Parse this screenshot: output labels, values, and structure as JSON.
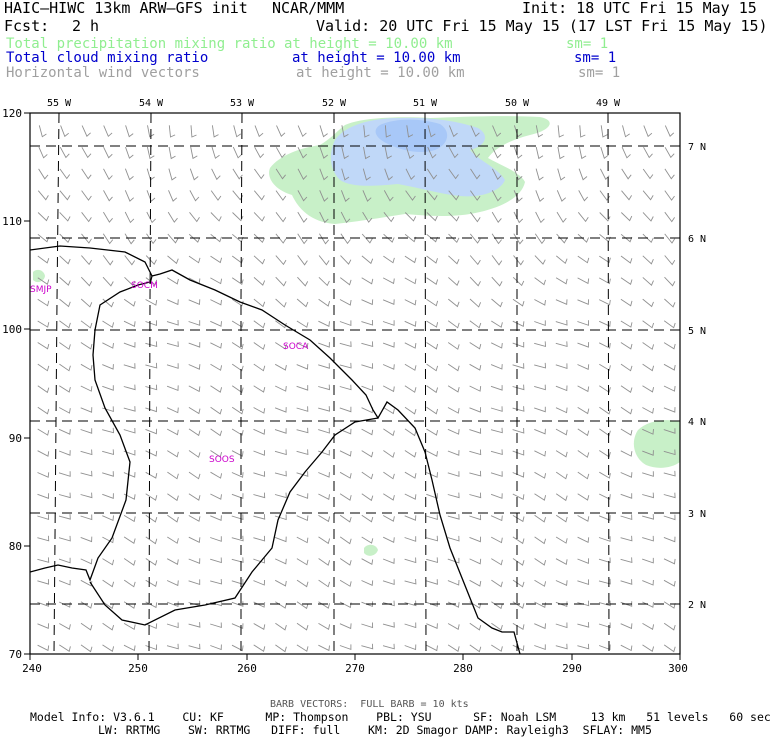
{
  "header": {
    "title": "HAIC–HIWC 13km ARW–GFS init",
    "org": "NCAR/MMM",
    "init": "Init: 18 UTC Fri 15 May 15",
    "fcst_label": "Fcst:",
    "fcst_value": "2 h",
    "valid": "Valid: 20 UTC Fri 15 May 15 (17 LST Fri 15 May 15)"
  },
  "fields": [
    {
      "name": "Total precipitation mixing ratio",
      "height": "at height = 10.00 km",
      "sm": "sm= 1",
      "color": "#90ee90"
    },
    {
      "name": "Total cloud mixing ratio",
      "height": "at height = 10.00 km",
      "sm": "sm= 1",
      "color": "#0000cd"
    },
    {
      "name": "Horizontal wind vectors",
      "height": "at height = 10.00 km",
      "sm": "sm= 1",
      "color": "#a0a0a0"
    }
  ],
  "map": {
    "x_ticks": [
      "240",
      "250",
      "260",
      "270",
      "280",
      "290",
      "300"
    ],
    "y_ticks": [
      "70",
      "80",
      "90",
      "100",
      "110",
      "120"
    ],
    "lon_labels": [
      "55 W",
      "54 W",
      "53 W",
      "52 W",
      "51 W",
      "50 W",
      "49 W"
    ],
    "lat_labels": [
      "7 N",
      "6 N",
      "5 N",
      "4 N",
      "3 N",
      "2 N"
    ],
    "stations": [
      "SMJP",
      "SOCM",
      "SOCA",
      "SOOS"
    ],
    "colors": {
      "precip": "#c8f0c8",
      "cloud": "#c0d8f8",
      "cloud_core": "#a8c8f8",
      "coast": "#000000",
      "grid": "#000000",
      "barb": "#909090",
      "station": "#cc00cc"
    }
  },
  "footer": {
    "barb": "BARB VECTORS:  FULL BARB = 10 kts",
    "line1": "Model Info: V3.6.1    CU: KF      MP: Thompson    PBL: YSU      SF: Noah LSM     13 km   51 levels   60 sec",
    "line2": "LW: RRTMG    SW: RRTMG   DIFF: full    KM: 2D Smagor DAMP: Rayleigh3  SFLAY: MM5"
  }
}
